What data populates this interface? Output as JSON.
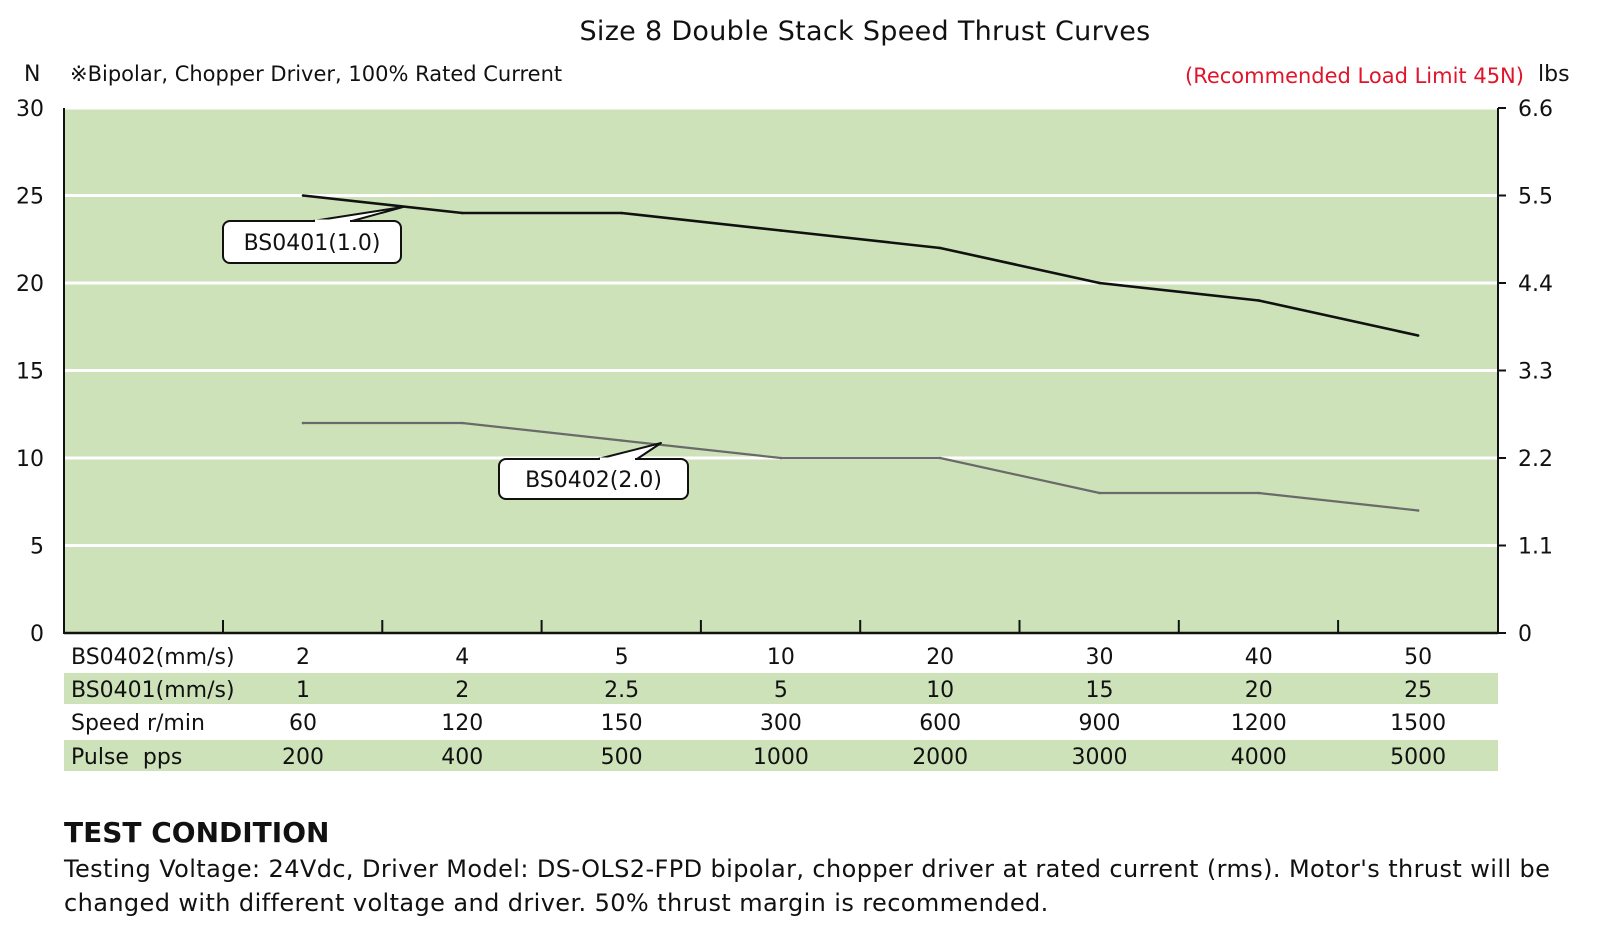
{
  "chart_data": {
    "type": "line",
    "title": "Size 8 Double Stack Speed Thrust Curves",
    "ylabel_left": "N",
    "ylabel_right": "lbs",
    "note": "※Bipolar, Chopper Driver, 100% Rated Current",
    "limit_text": "(Recommended Load Limit 45N)",
    "ylim": [
      0,
      30
    ],
    "y_ticks_left": [
      "0",
      "5",
      "10",
      "15",
      "20",
      "25",
      "30"
    ],
    "y_ticks_right": [
      "0",
      "1.1",
      "2.2",
      "3.3",
      "4.4",
      "5.5",
      "6.6"
    ],
    "x_positions": [
      1,
      2,
      3,
      4,
      5,
      6,
      7,
      8
    ],
    "series": [
      {
        "name": "BS0401(1.0)",
        "color": "#111111",
        "values": [
          25,
          24,
          24,
          23,
          22,
          20,
          19,
          17
        ]
      },
      {
        "name": "BS0402(2.0)",
        "color": "#6a6a6a",
        "values": [
          12,
          12,
          11,
          10,
          10,
          8,
          8,
          7
        ]
      }
    ],
    "table_rows": [
      {
        "label": "BS0402(mm/s)",
        "values": [
          "2",
          "4",
          "5",
          "10",
          "20",
          "30",
          "40",
          "50"
        ],
        "shaded": false
      },
      {
        "label": "BS0401(mm/s)",
        "values": [
          "1",
          "2",
          "2.5",
          "5",
          "10",
          "15",
          "20",
          "25"
        ],
        "shaded": true
      },
      {
        "label": "Speed r/min",
        "values": [
          "60",
          "120",
          "150",
          "300",
          "600",
          "900",
          "1200",
          "1500"
        ],
        "shaded": false
      },
      {
        "label": "Pulse  pps",
        "values": [
          "200",
          "400",
          "500",
          "1000",
          "2000",
          "3000",
          "4000",
          "5000"
        ],
        "shaded": true
      }
    ],
    "colors": {
      "plot_bg": "#cde2b8",
      "grid": "#ffffff",
      "limit": "#e0142a"
    }
  },
  "test_condition": {
    "heading": "TEST CONDITION",
    "text": "Testing Voltage: 24Vdc, Driver Model: DS-OLS2-FPD bipolar, chopper driver at rated current (rms). Motor's thrust will be changed with different voltage and driver. 50% thrust margin is recommended."
  }
}
